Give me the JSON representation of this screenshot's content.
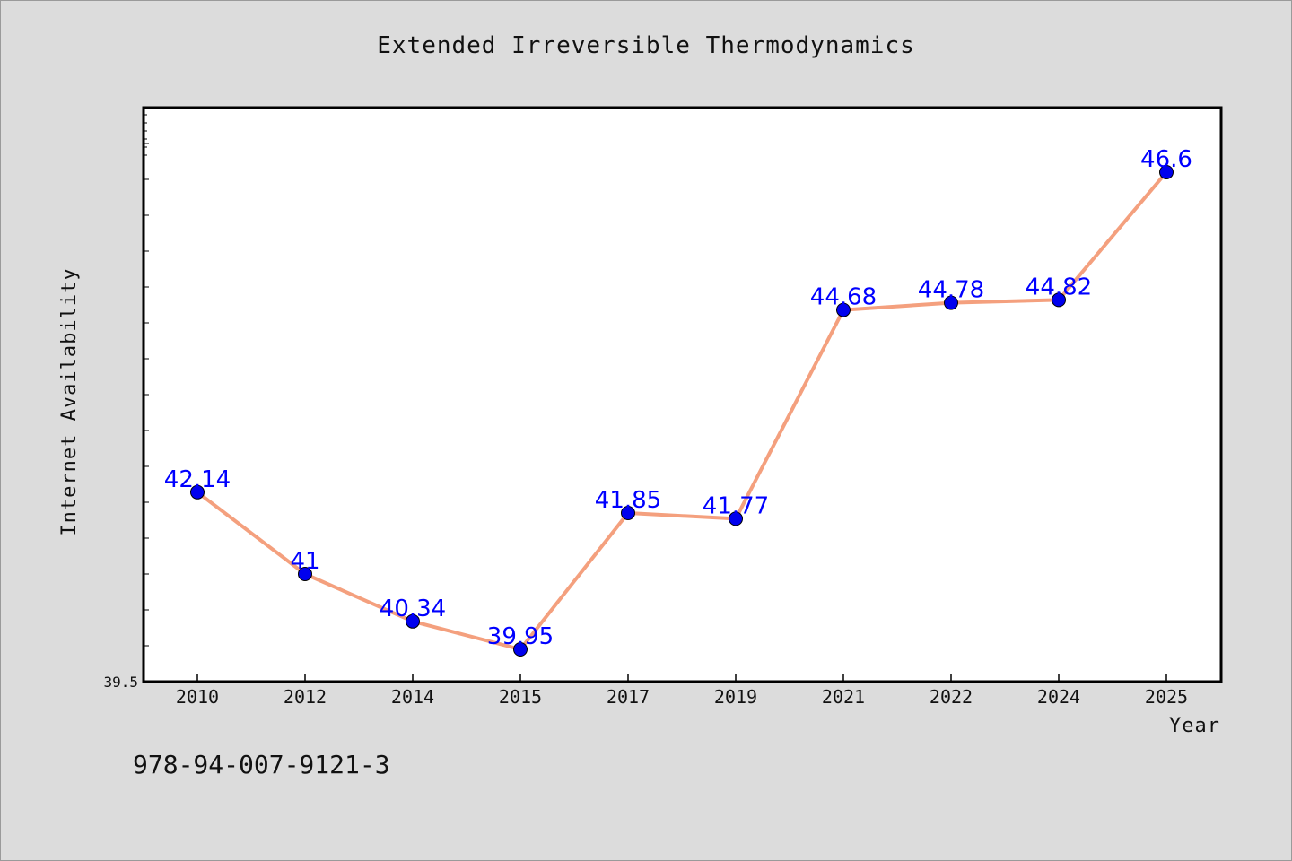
{
  "title": "Extended Irreversible Thermodynamics",
  "footer_code": "978-94-007-9121-3",
  "chart_data": {
    "type": "line",
    "title": "Extended Irreversible Thermodynamics",
    "xlabel": "Year",
    "ylabel": "Internet Availability",
    "categories": [
      "2010",
      "2012",
      "2014",
      "2015",
      "2017",
      "2019",
      "2021",
      "2022",
      "2024",
      "2025"
    ],
    "values": [
      42.14,
      41,
      40.34,
      39.95,
      41.85,
      41.77,
      44.68,
      44.78,
      44.82,
      46.6
    ],
    "data_labels": [
      "42.14",
      "41",
      "40.34",
      "39.95",
      "41.85",
      "41.77",
      "44.68",
      "44.78",
      "44.82",
      "46.6"
    ],
    "ylim": [
      39.5,
      47.5
    ],
    "y_tick_label": "39.5",
    "grid": false,
    "colors": {
      "line": "#f4a07e",
      "marker": "#0000ee",
      "label": "#0000ff",
      "plot_background": "#ffffff",
      "page_background": "#dcdcdc"
    }
  }
}
